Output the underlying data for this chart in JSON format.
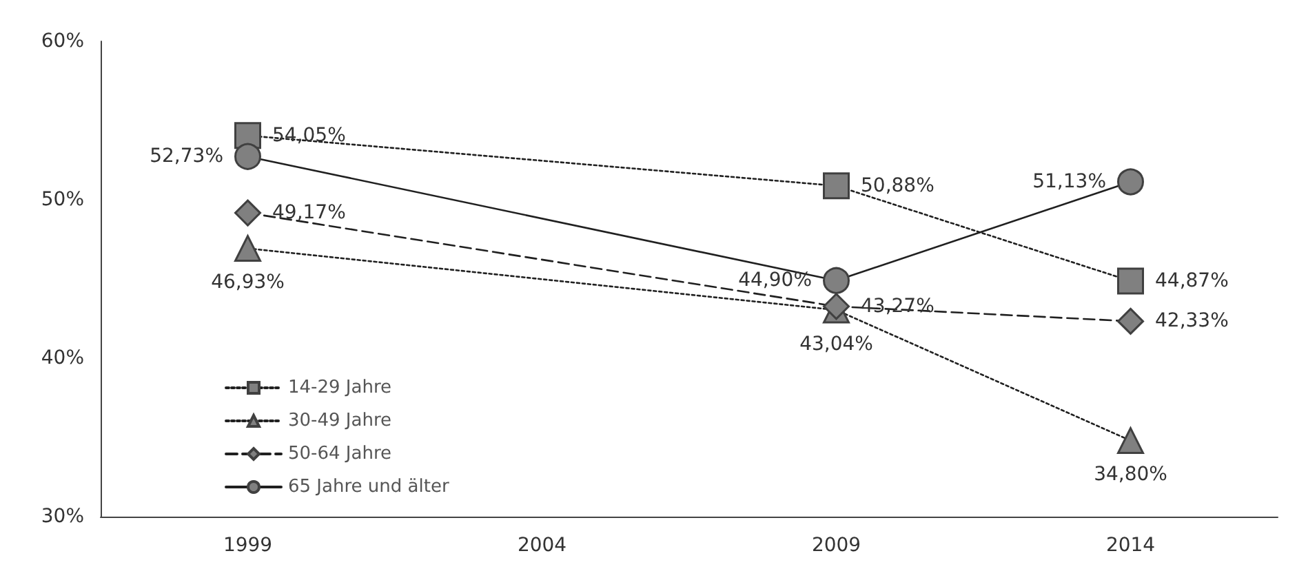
{
  "chart_data": {
    "type": "line",
    "categories": [
      "1999",
      "2004",
      "2009",
      "2014"
    ],
    "ylim": [
      30,
      60
    ],
    "yticks": [
      {
        "value": 30,
        "label": "30%"
      },
      {
        "value": 40,
        "label": "40%"
      },
      {
        "value": 50,
        "label": "50%"
      },
      {
        "value": 60,
        "label": "60%"
      }
    ],
    "grid": false,
    "legend": "bottom left",
    "series": [
      {
        "name": "14-29 Jahre",
        "color": "#808080",
        "marker": "square",
        "line_style": "dotted",
        "values": [
          54.05,
          null,
          50.88,
          44.87
        ],
        "value_labels": [
          "54,05%",
          null,
          "50,88%",
          "44,87%"
        ]
      },
      {
        "name": "30-49 Jahre",
        "color": "#808080",
        "marker": "triangle",
        "line_style": "dotted",
        "values": [
          46.93,
          null,
          43.04,
          34.8
        ],
        "value_labels": [
          "46,93%",
          null,
          "43,04%",
          "34,80%"
        ]
      },
      {
        "name": "50-64 Jahre",
        "color": "#808080",
        "marker": "diamond",
        "line_style": "dashed",
        "values": [
          49.17,
          null,
          43.27,
          42.33
        ],
        "value_labels": [
          "49,17%",
          null,
          "43,27%",
          "42,33%"
        ]
      },
      {
        "name": "65 Jahre und älter",
        "color": "#808080",
        "marker": "circle",
        "line_style": "solid",
        "values": [
          52.73,
          null,
          44.9,
          51.13
        ],
        "value_labels": [
          "52,73%",
          null,
          "44,90%",
          "51,13%"
        ]
      }
    ]
  }
}
